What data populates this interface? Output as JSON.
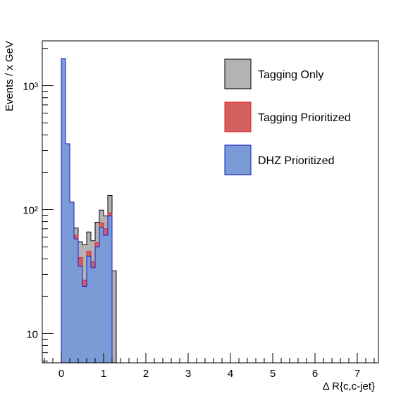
{
  "chart_data": {
    "type": "bar",
    "title": "",
    "xlabel": "Δ R{c,c-jet}",
    "ylabel": "Events / x GeV",
    "xlim": [
      -0.45,
      7.5
    ],
    "ylim": [
      5.8,
      2300
    ],
    "yscale": "log",
    "bin_width": 0.1,
    "x_ticks": [
      "0",
      "1",
      "2",
      "3",
      "4",
      "5",
      "6",
      "7"
    ],
    "y_ticks": [
      {
        "value": 10,
        "label": "10"
      },
      {
        "value": 100,
        "label": "10²"
      },
      {
        "value": 1000,
        "label": "10³"
      }
    ],
    "legend_position": "top-right",
    "x": [
      0.05,
      0.15,
      0.25,
      0.35,
      0.45,
      0.55,
      0.65,
      0.75,
      0.85,
      0.95,
      1.05,
      1.15,
      1.25
    ],
    "series": [
      {
        "name": "Tagging Only",
        "color": "#b3b3b3",
        "edge": "#000000",
        "values": [
          1650,
          340,
          115,
          71,
          55,
          52,
          66,
          56,
          79,
          99,
          89,
          130,
          32
        ]
      },
      {
        "name": "Tagging Prioritized",
        "color": "#d45f5f",
        "edge": "#e01f1f",
        "values": [
          1650,
          340,
          115,
          62,
          41,
          27,
          46,
          38,
          54,
          78,
          70,
          94,
          0
        ]
      },
      {
        "name": "DHZ Prioritized",
        "color": "#7b9bd6",
        "edge": "#1a1acc",
        "values": [
          1650,
          340,
          115,
          58,
          35,
          24,
          42,
          34,
          50,
          72,
          62,
          89,
          0
        ]
      }
    ]
  }
}
